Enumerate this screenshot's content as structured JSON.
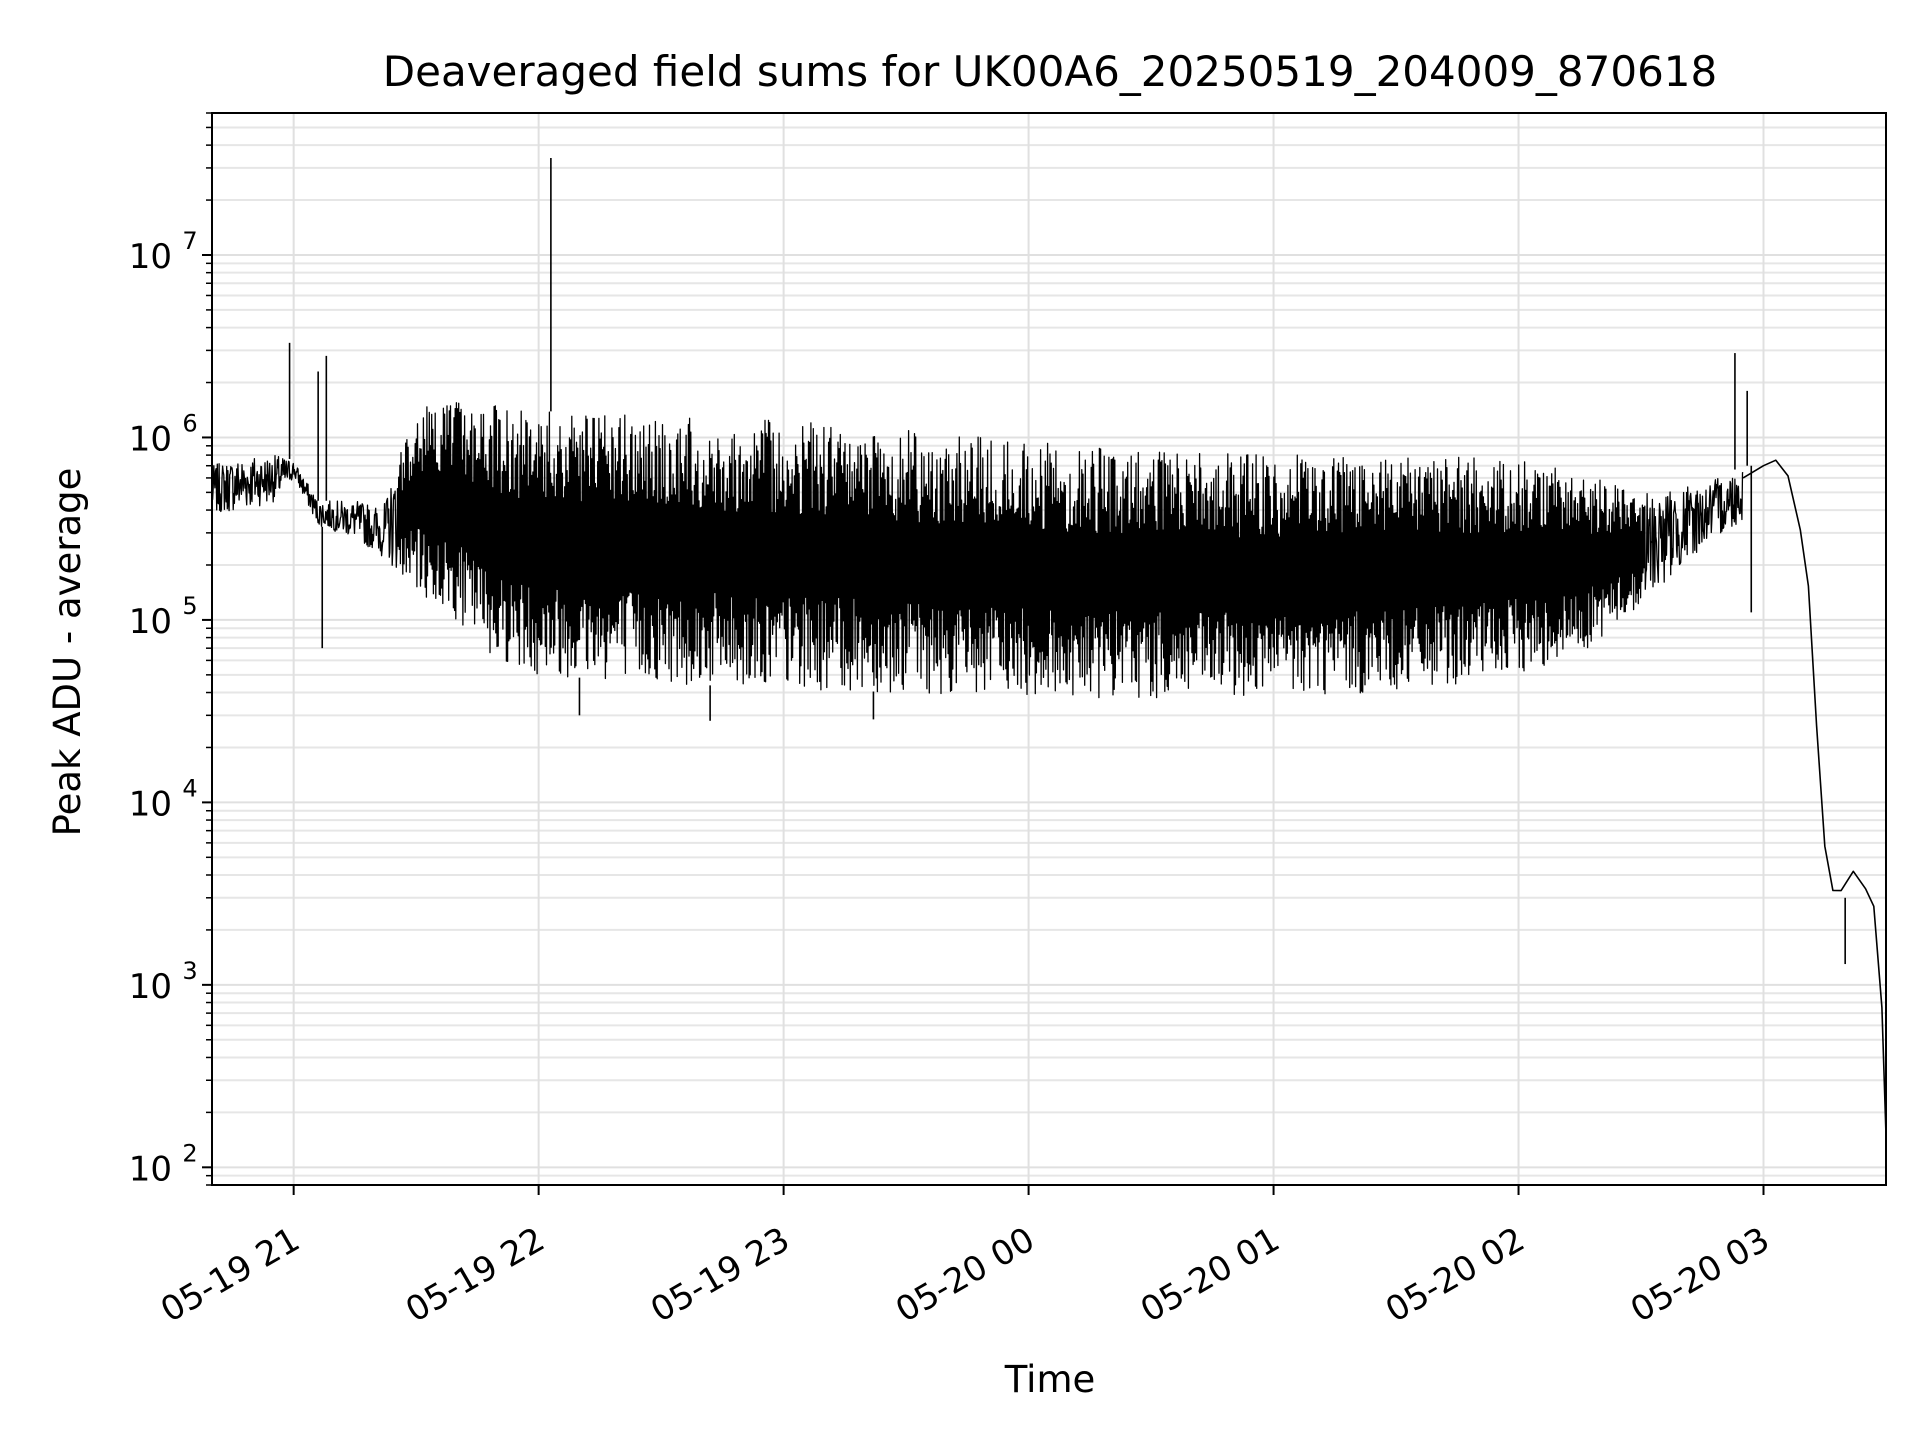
{
  "chart_data": {
    "type": "line",
    "title": "Deaveraged field sums for UK00A6_20250519_204009_870618",
    "xlabel": "Time",
    "ylabel": "Peak ADU - average",
    "y_scale": "log",
    "grid": true,
    "xlim": [
      "2025-05-19 20:40",
      "2025-05-20 03:30"
    ],
    "ylim": [
      80,
      60000000
    ],
    "x_ticks": [
      {
        "time": "2025-05-19 21:00",
        "label": "05-19 21"
      },
      {
        "time": "2025-05-19 22:00",
        "label": "05-19 22"
      },
      {
        "time": "2025-05-19 23:00",
        "label": "05-19 23"
      },
      {
        "time": "2025-05-20 00:00",
        "label": "05-20 00"
      },
      {
        "time": "2025-05-20 01:00",
        "label": "05-20 01"
      },
      {
        "time": "2025-05-20 02:00",
        "label": "05-20 02"
      },
      {
        "time": "2025-05-20 03:00",
        "label": "05-20 03"
      }
    ],
    "y_ticks": [
      {
        "value": 100,
        "base": "10",
        "exp": "2"
      },
      {
        "value": 1000,
        "base": "10",
        "exp": "3"
      },
      {
        "value": 10000,
        "base": "10",
        "exp": "4"
      },
      {
        "value": 100000,
        "base": "10",
        "exp": "5"
      },
      {
        "value": 1000000,
        "base": "10",
        "exp": "6"
      },
      {
        "value": 10000000,
        "base": "10",
        "exp": "7"
      }
    ],
    "line_color": "#000000",
    "envelope": [
      {
        "x": "2025-05-19 20:40",
        "low": 380000,
        "high": 700000
      },
      {
        "x": "2025-05-19 20:48",
        "low": 400000,
        "high": 800000
      },
      {
        "x": "2025-05-19 20:56",
        "low": 450000,
        "high": 800000
      },
      {
        "x": "2025-05-19 21:00",
        "low": 600000,
        "high": 750000
      },
      {
        "x": "2025-05-19 21:06",
        "low": 330000,
        "high": 450000
      },
      {
        "x": "2025-05-19 21:15",
        "low": 280000,
        "high": 450000
      },
      {
        "x": "2025-05-19 21:22",
        "low": 220000,
        "high": 420000
      },
      {
        "x": "2025-05-19 21:30",
        "low": 140000,
        "high": 1500000
      },
      {
        "x": "2025-05-19 21:40",
        "low": 100000,
        "high": 1600000
      },
      {
        "x": "2025-05-19 21:50",
        "low": 60000,
        "high": 1500000
      },
      {
        "x": "2025-05-19 22:00",
        "low": 50000,
        "high": 1400000
      },
      {
        "x": "2025-05-19 22:30",
        "low": 45000,
        "high": 1300000
      },
      {
        "x": "2025-05-19 23:00",
        "low": 42000,
        "high": 1250000
      },
      {
        "x": "2025-05-19 23:30",
        "low": 40000,
        "high": 1100000
      },
      {
        "x": "2025-05-20 00:00",
        "low": 38000,
        "high": 950000
      },
      {
        "x": "2025-05-20 00:30",
        "low": 37000,
        "high": 850000
      },
      {
        "x": "2025-05-20 01:00",
        "low": 38000,
        "high": 800000
      },
      {
        "x": "2025-05-20 01:30",
        "low": 40000,
        "high": 800000
      },
      {
        "x": "2025-05-20 02:00",
        "low": 50000,
        "high": 800000
      },
      {
        "x": "2025-05-20 02:15",
        "low": 65000,
        "high": 650000
      },
      {
        "x": "2025-05-20 02:30",
        "low": 120000,
        "high": 500000
      },
      {
        "x": "2025-05-20 02:45",
        "low": 250000,
        "high": 550000
      },
      {
        "x": "2025-05-20 02:55",
        "low": 350000,
        "high": 700000
      }
    ],
    "tail": [
      {
        "x": "2025-05-20 02:55",
        "y": 600000
      },
      {
        "x": "2025-05-20 03:00",
        "y": 700000
      },
      {
        "x": "2025-05-20 03:03",
        "y": 750000
      },
      {
        "x": "2025-05-20 03:06",
        "y": 650000
      },
      {
        "x": "2025-05-20 03:09",
        "y": 350000
      },
      {
        "x": "2025-05-20 03:11",
        "y": 150000
      },
      {
        "x": "2025-05-20 03:13",
        "y": 30000
      },
      {
        "x": "2025-05-20 03:15",
        "y": 6000
      },
      {
        "x": "2025-05-20 03:17",
        "y": 3000
      },
      {
        "x": "2025-05-20 03:19",
        "y": 3500
      },
      {
        "x": "2025-05-20 03:22",
        "y": 4000
      },
      {
        "x": "2025-05-20 03:25",
        "y": 3600
      },
      {
        "x": "2025-05-20 03:27",
        "y": 2500
      },
      {
        "x": "2025-05-20 03:29",
        "y": 800
      },
      {
        "x": "2025-05-20 03:30",
        "y": 150
      }
    ],
    "spikes": [
      {
        "x": "2025-05-19 20:59",
        "y": 3300000
      },
      {
        "x": "2025-05-19 21:06",
        "y": 2300000
      },
      {
        "x": "2025-05-19 21:08",
        "y": 2800000
      },
      {
        "x": "2025-05-19 21:07",
        "y": 70000
      },
      {
        "x": "2025-05-19 22:03",
        "y": 34000000
      },
      {
        "x": "2025-05-19 22:10",
        "y": 30000
      },
      {
        "x": "2025-05-19 22:42",
        "y": 28000
      },
      {
        "x": "2025-05-19 23:22",
        "y": 28500
      },
      {
        "x": "2025-05-20 02:53",
        "y": 2900000
      },
      {
        "x": "2025-05-20 02:56",
        "y": 1800000
      },
      {
        "x": "2025-05-20 02:57",
        "y": 110000
      },
      {
        "x": "2025-05-20 03:20",
        "y": 1300
      }
    ]
  }
}
